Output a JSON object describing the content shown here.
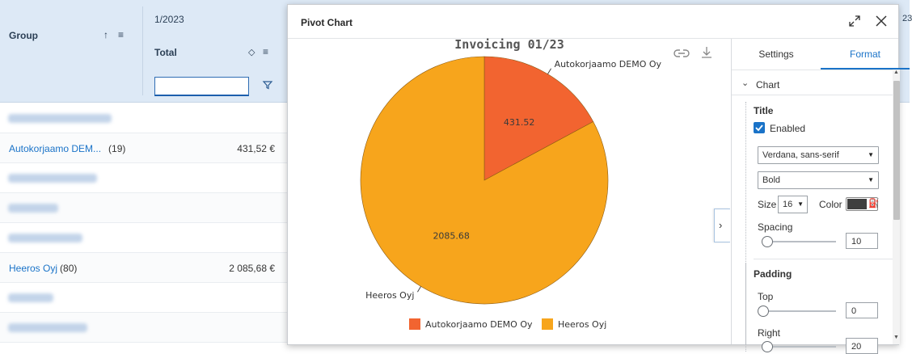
{
  "grid": {
    "header": {
      "group_label": "Group",
      "period_label": "1/2023",
      "total_label": "Total",
      "edge_text": "23"
    },
    "rows": [
      {
        "type": "blurred"
      },
      {
        "type": "link",
        "name": "Autokorjaamo DEM...",
        "count": "(19)",
        "amount": "431,52 €"
      },
      {
        "type": "blurred"
      },
      {
        "type": "blurred"
      },
      {
        "type": "blurred"
      },
      {
        "type": "link",
        "name": "Heeros Oyj",
        "count": "(80)",
        "amount": "2 085,68 €"
      },
      {
        "type": "blurred"
      },
      {
        "type": "blurred"
      }
    ]
  },
  "modal": {
    "title": "Pivot Chart",
    "tabs": {
      "settings": "Settings",
      "format": "Format"
    },
    "format": {
      "section_chart": "Chart",
      "title_heading": "Title",
      "enabled_label": "Enabled",
      "enabled": true,
      "font_family": "Verdana, sans-serif",
      "font_weight": "Bold",
      "size_label": "Size",
      "size_value": "16",
      "color_label": "Color",
      "title_color": "#3f3f3f",
      "spacing_label": "Spacing",
      "spacing_value": "10",
      "padding_heading": "Padding",
      "top_label": "Top",
      "top_value": "0",
      "right_label": "Right",
      "right_value": "20"
    }
  },
  "chart_data": {
    "type": "pie",
    "title": "Invoicing 01/23",
    "series": [
      {
        "name": "Autokorjaamo DEMO Oy",
        "value": 431.52,
        "label": "431.52",
        "color": "#f26430"
      },
      {
        "name": "Heeros Oyj",
        "value": 2085.68,
        "label": "2085.68",
        "color": "#f7a51c"
      }
    ],
    "legend_position": "bottom"
  }
}
